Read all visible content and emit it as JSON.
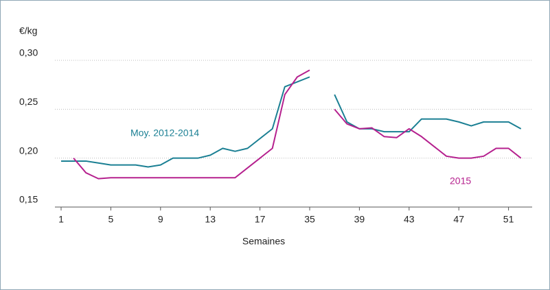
{
  "chart_data": {
    "type": "line",
    "y_label": "€/kg",
    "x_label": "Semaines",
    "categories": [
      "1",
      null,
      null,
      null,
      "5",
      null,
      null,
      null,
      "9",
      null,
      null,
      null,
      "13",
      null,
      null,
      null,
      "17",
      null,
      null,
      null,
      "35",
      null,
      null,
      null,
      "39",
      null,
      null,
      null,
      "43",
      null,
      null,
      null,
      "47",
      null,
      null,
      null,
      "51",
      null
    ],
    "series": [
      {
        "name": "Moy. 2012-2014",
        "color": "#1a7f93",
        "values": [
          0.197,
          0.197,
          0.197,
          0.195,
          0.193,
          0.193,
          0.193,
          0.191,
          0.193,
          0.2,
          0.2,
          0.2,
          0.203,
          0.21,
          0.207,
          0.21,
          0.22,
          0.23,
          0.273,
          0.278,
          0.283,
          null,
          0.265,
          0.237,
          0.23,
          0.23,
          0.227,
          0.227,
          0.227,
          0.24,
          0.24,
          0.24,
          0.237,
          0.233,
          0.237,
          0.237,
          0.237,
          0.23
        ]
      },
      {
        "name": "2015",
        "color": "#b5208e",
        "values": [
          null,
          0.2,
          0.185,
          0.179,
          0.18,
          0.18,
          0.18,
          0.18,
          0.18,
          0.18,
          0.18,
          0.18,
          0.18,
          0.18,
          0.18,
          0.19,
          0.2,
          0.21,
          0.265,
          0.283,
          0.29,
          null,
          0.25,
          0.235,
          0.23,
          0.231,
          0.222,
          0.221,
          0.23,
          0.222,
          0.212,
          0.202,
          0.2,
          0.2,
          0.202,
          0.21,
          0.21,
          0.2
        ]
      }
    ],
    "ylim": [
      0.15,
      0.3
    ],
    "yticks": [
      {
        "value": 0.15,
        "label": "0,15"
      },
      {
        "value": 0.2,
        "label": "0,20"
      },
      {
        "value": 0.25,
        "label": "0,25"
      },
      {
        "value": 0.3,
        "label": "0,30"
      }
    ],
    "grid": true
  }
}
